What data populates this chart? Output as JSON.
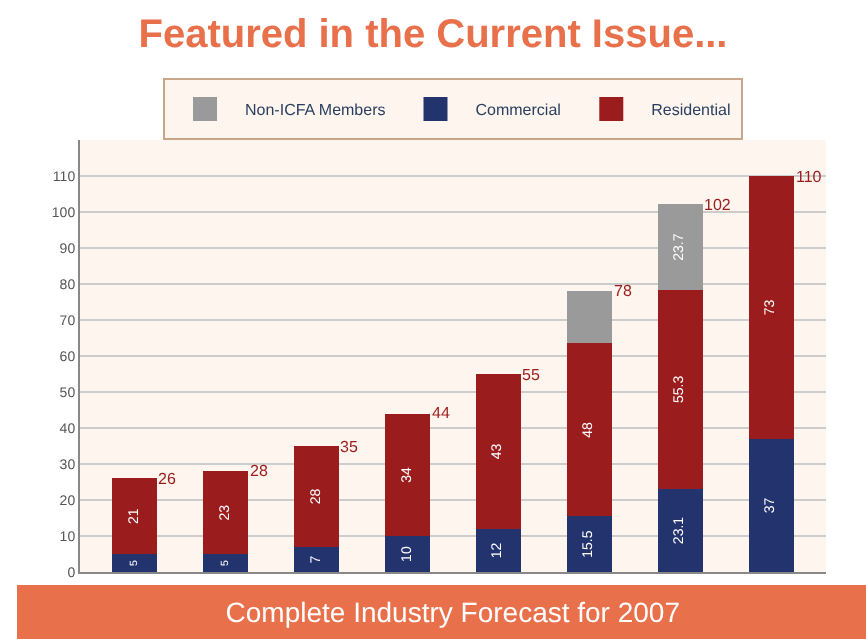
{
  "chart_data": {
    "type": "bar",
    "title": "Featured in the Current Issue...",
    "annotations": [
      "Complete Industry Forecast for 2007"
    ],
    "categories": [
      null,
      null,
      null,
      null,
      null,
      null,
      null,
      null
    ],
    "stacked": true,
    "series": [
      {
        "name": "Commercial",
        "color": "#23336e",
        "values": [
          5,
          5,
          7,
          10,
          12,
          15.5,
          23.1,
          37
        ],
        "value_labels": [
          "5",
          "5",
          "7",
          "10",
          "12",
          "15.5",
          "23.1",
          "37"
        ]
      },
      {
        "name": "Residential",
        "color": "#9b1c1c",
        "values": [
          21,
          23,
          28,
          34,
          43,
          48,
          55.3,
          73
        ],
        "value_labels": [
          "21",
          "23",
          "28",
          "34",
          "43",
          "48",
          "55.3",
          "73"
        ]
      },
      {
        "name": "Non-ICFA Members",
        "color": "#9a9a9a",
        "values": [
          null,
          null,
          null,
          null,
          null,
          14.5,
          23.7,
          null
        ],
        "value_labels": [
          null,
          null,
          null,
          null,
          null,
          null,
          "23.7",
          null
        ]
      }
    ],
    "totals": [
      "26",
      "28",
      "35",
      "44",
      "55",
      "78",
      "102",
      "110"
    ],
    "ylim": [
      0,
      120
    ],
    "yticks": [
      0,
      10,
      20,
      30,
      40,
      50,
      60,
      70,
      80,
      90,
      100,
      110
    ],
    "grid": "y",
    "legend": "top"
  }
}
